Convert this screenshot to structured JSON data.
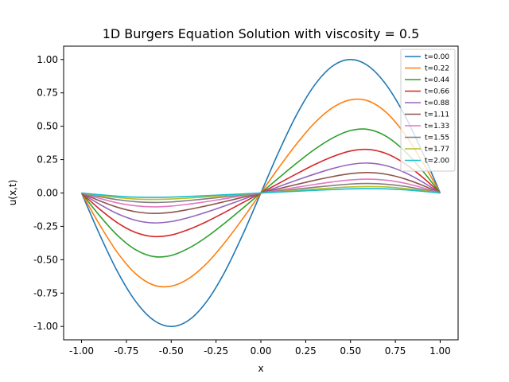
{
  "chart_data": {
    "type": "line",
    "title": "1D Burgers Equation Solution with viscosity = 0.5",
    "xlabel": "x",
    "ylabel": "u(x,t)",
    "xlim": [
      -1.1,
      1.1
    ],
    "ylim": [
      -1.1,
      1.1
    ],
    "xticks": [
      "-1.00",
      "-0.75",
      "-0.50",
      "-0.25",
      "0.00",
      "0.25",
      "0.50",
      "0.75",
      "1.00"
    ],
    "yticks": [
      "-1.00",
      "-0.75",
      "-0.50",
      "-0.25",
      "0.00",
      "0.25",
      "0.50",
      "0.75",
      "1.00"
    ],
    "grid": false,
    "legend_position": "top-right",
    "x": [
      -1.0,
      -0.9,
      -0.8,
      -0.7,
      -0.6,
      -0.5,
      -0.4,
      -0.3,
      -0.2,
      -0.1,
      0.0,
      0.1,
      0.2,
      0.3,
      0.4,
      0.5,
      0.6,
      0.7,
      0.8,
      0.9,
      1.0
    ],
    "series": [
      {
        "name": "t=0.00",
        "color": "#1f77b4",
        "values": [
          0.0,
          -0.309,
          -0.588,
          -0.809,
          -0.951,
          -1.0,
          -0.951,
          -0.809,
          -0.588,
          -0.309,
          0.0,
          0.309,
          0.588,
          0.809,
          0.951,
          1.0,
          0.951,
          0.809,
          0.588,
          0.309,
          0.0
        ]
      },
      {
        "name": "t=0.22",
        "color": "#ff7f0e",
        "values": [
          0.0,
          -0.236,
          -0.446,
          -0.603,
          -0.689,
          -0.698,
          -0.639,
          -0.525,
          -0.369,
          -0.19,
          0.0,
          0.19,
          0.369,
          0.525,
          0.639,
          0.698,
          0.689,
          0.603,
          0.446,
          0.236,
          0.0
        ]
      },
      {
        "name": "t=0.44",
        "color": "#2ca02c",
        "values": [
          0.0,
          -0.169,
          -0.317,
          -0.424,
          -0.476,
          -0.468,
          -0.412,
          -0.327,
          -0.224,
          -0.113,
          0.0,
          0.113,
          0.224,
          0.327,
          0.412,
          0.468,
          0.476,
          0.424,
          0.317,
          0.169,
          0.0
        ]
      },
      {
        "name": "t=0.66",
        "color": "#d62728",
        "values": [
          0.0,
          -0.12,
          -0.223,
          -0.295,
          -0.326,
          -0.315,
          -0.272,
          -0.213,
          -0.144,
          -0.072,
          0.0,
          0.072,
          0.144,
          0.213,
          0.272,
          0.315,
          0.326,
          0.295,
          0.223,
          0.12,
          0.0
        ]
      },
      {
        "name": "t=0.88",
        "color": "#9467bd",
        "values": [
          0.0,
          -0.084,
          -0.155,
          -0.204,
          -0.224,
          -0.214,
          -0.183,
          -0.142,
          -0.096,
          -0.048,
          0.0,
          0.048,
          0.096,
          0.142,
          0.183,
          0.214,
          0.224,
          0.204,
          0.155,
          0.084,
          0.0
        ]
      },
      {
        "name": "t=1.11",
        "color": "#8c564b",
        "values": [
          0.0,
          -0.058,
          -0.107,
          -0.14,
          -0.153,
          -0.145,
          -0.123,
          -0.095,
          -0.064,
          -0.032,
          0.0,
          0.032,
          0.064,
          0.095,
          0.123,
          0.145,
          0.153,
          0.14,
          0.107,
          0.058,
          0.0
        ]
      },
      {
        "name": "t=1.33",
        "color": "#e377c2",
        "values": [
          0.0,
          -0.04,
          -0.074,
          -0.096,
          -0.104,
          -0.098,
          -0.083,
          -0.064,
          -0.043,
          -0.021,
          0.0,
          0.021,
          0.043,
          0.064,
          0.083,
          0.098,
          0.104,
          0.096,
          0.074,
          0.04,
          0.0
        ]
      },
      {
        "name": "t=1.55",
        "color": "#7f7f7f",
        "values": [
          0.0,
          -0.027,
          -0.05,
          -0.065,
          -0.071,
          -0.067,
          -0.056,
          -0.043,
          -0.029,
          -0.014,
          0.0,
          0.014,
          0.029,
          0.043,
          0.056,
          0.067,
          0.071,
          0.065,
          0.05,
          0.027,
          0.0
        ]
      },
      {
        "name": "t=1.77",
        "color": "#bcbd22",
        "values": [
          0.0,
          -0.019,
          -0.034,
          -0.045,
          -0.048,
          -0.045,
          -0.038,
          -0.029,
          -0.019,
          -0.01,
          0.0,
          0.01,
          0.019,
          0.029,
          0.038,
          0.045,
          0.048,
          0.045,
          0.034,
          0.019,
          0.0
        ]
      },
      {
        "name": "t=2.00",
        "color": "#17becf",
        "values": [
          0.0,
          -0.013,
          -0.024,
          -0.031,
          -0.033,
          -0.031,
          -0.026,
          -0.02,
          -0.013,
          -0.007,
          0.0,
          0.007,
          0.013,
          0.02,
          0.026,
          0.031,
          0.033,
          0.031,
          0.024,
          0.013,
          0.0
        ]
      }
    ]
  }
}
